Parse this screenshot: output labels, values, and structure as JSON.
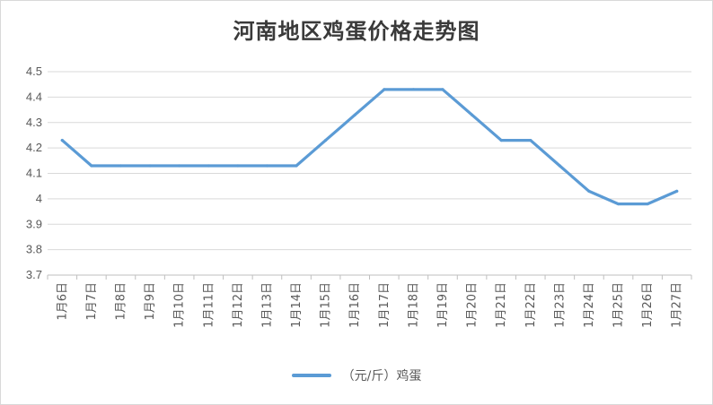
{
  "title": "河南地区鸡蛋价格走势图",
  "legend": {
    "label": "（元/斤）鸡蛋"
  },
  "colors": {
    "series": "#5b9bd5",
    "grid": "#d9d9d9",
    "axis": "#bfbfbf"
  },
  "chart_data": {
    "type": "line",
    "title": "河南地区鸡蛋价格走势图",
    "categories": [
      "1月6日",
      "1月7日",
      "1月8日",
      "1月9日",
      "1月10日",
      "1月11日",
      "1月12日",
      "1月13日",
      "1月14日",
      "1月15日",
      "1月16日",
      "1月17日",
      "1月18日",
      "1月19日",
      "1月20日",
      "1月21日",
      "1月22日",
      "1月23日",
      "1月24日",
      "1月25日",
      "1月26日",
      "1月27日"
    ],
    "series": [
      {
        "name": "（元/斤）鸡蛋",
        "values": [
          4.23,
          4.13,
          4.13,
          4.13,
          4.13,
          4.13,
          4.13,
          4.13,
          4.13,
          4.23,
          4.33,
          4.43,
          4.43,
          4.43,
          4.33,
          4.23,
          4.23,
          4.13,
          4.03,
          3.98,
          3.98,
          4.03
        ]
      }
    ],
    "yticks": [
      "3.7",
      "3.8",
      "3.9",
      "4",
      "4.1",
      "4.2",
      "4.3",
      "4.4",
      "4.5"
    ],
    "ylim": [
      3.7,
      4.5
    ],
    "grid": true,
    "legend_position": "bottom"
  }
}
